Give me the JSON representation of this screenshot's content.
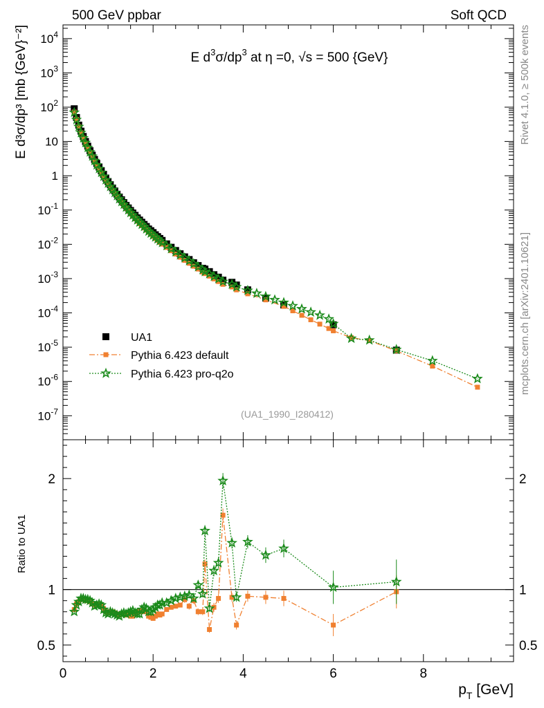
{
  "header": {
    "left": "500 GeV ppbar",
    "right": "Soft QCD"
  },
  "side": {
    "top": "Rivet 4.1.0, ≥ 500k events",
    "bottom": "mcplots.cern.ch [arXiv:2401.10621]"
  },
  "chart_data": {
    "type": "scatter",
    "title": "E  d³σ/dp³ at η =0, √s = 500 {GeV}",
    "title_parts": {
      "p1": "E   d",
      "sup": "3",
      "p2": "σ/dp",
      "p3": " at η =0, √s = 500 {GeV}"
    },
    "analysis_tag": "(UA1_1990_I280412)",
    "xlabel": {
      "main": "p",
      "sub": "T",
      "unit": " [GeV]"
    },
    "ylabel": {
      "text": "E d³σ/dp³ [mb {GeV}⁻²]"
    },
    "ratio_ylabel": "Ratio to UA1",
    "xlim": [
      0,
      10
    ],
    "ylim_log": [
      -7.7,
      4.4
    ],
    "ratio_ylim": [
      0.35,
      2.35
    ],
    "x_ticks": [
      "0",
      "2",
      "4",
      "6",
      "8"
    ],
    "y_ticks": [
      {
        "exp": -7,
        "label": "10",
        "sup": "-7"
      },
      {
        "exp": -6,
        "label": "10",
        "sup": "-6"
      },
      {
        "exp": -5,
        "label": "10",
        "sup": "-5"
      },
      {
        "exp": -4,
        "label": "10",
        "sup": "-4"
      },
      {
        "exp": -3,
        "label": "10",
        "sup": "-3"
      },
      {
        "exp": -2,
        "label": "10",
        "sup": "-2"
      },
      {
        "exp": -1,
        "label": "10",
        "sup": "-1"
      },
      {
        "exp": 0,
        "label": "1",
        "sup": ""
      },
      {
        "exp": 1,
        "label": "10",
        "sup": ""
      },
      {
        "exp": 2,
        "label": "10",
        "sup": "2"
      },
      {
        "exp": 3,
        "label": "10",
        "sup": "3"
      },
      {
        "exp": 4,
        "label": "10",
        "sup": "4"
      }
    ],
    "ratio_ticks": [
      {
        "value": 0.5,
        "label": "0.5"
      },
      {
        "value": 1,
        "label": "1"
      },
      {
        "value": 2,
        "label": "2"
      }
    ],
    "legend": [
      {
        "name": "UA1",
        "color": "#000000"
      },
      {
        "name": "Pythia 6.423 default",
        "color": "#f08030"
      },
      {
        "name": "Pythia 6.423 pro-q2o",
        "color": "#1a8a1a"
      }
    ],
    "x": [
      0.25,
      0.3,
      0.35,
      0.4,
      0.45,
      0.5,
      0.55,
      0.6,
      0.65,
      0.7,
      0.75,
      0.8,
      0.85,
      0.9,
      0.95,
      1.0,
      1.05,
      1.1,
      1.15,
      1.2,
      1.25,
      1.3,
      1.35,
      1.4,
      1.45,
      1.5,
      1.55,
      1.6,
      1.65,
      1.7,
      1.75,
      1.8,
      1.85,
      1.9,
      1.95,
      2.0,
      2.05,
      2.1,
      2.15,
      2.2,
      2.3,
      2.4,
      2.5,
      2.6,
      2.7,
      2.8,
      2.9,
      3.0,
      3.1,
      3.15,
      3.25,
      3.35,
      3.45,
      3.55,
      3.75,
      3.85,
      4.1,
      4.5,
      4.9,
      6.0,
      7.4
    ],
    "series": [
      {
        "name": "UA1",
        "values": [
          90,
          50,
          30,
          20,
          14,
          10,
          7.3,
          5.4,
          4.0,
          3.0,
          2.3,
          1.8,
          1.4,
          1.1,
          0.86,
          0.68,
          0.55,
          0.44,
          0.36,
          0.29,
          0.24,
          0.2,
          0.165,
          0.137,
          0.115,
          0.097,
          0.082,
          0.07,
          0.059,
          0.051,
          0.044,
          0.038,
          0.033,
          0.028,
          0.025,
          0.022,
          0.019,
          0.0168,
          0.0148,
          0.013,
          0.0103,
          0.0082,
          0.0066,
          0.0053,
          0.0043,
          0.0036,
          0.0029,
          0.0024,
          0.002,
          0.0019,
          0.0016,
          0.0013,
          0.0011,
          0.0009,
          0.00078,
          0.00065,
          0.00047,
          0.00027,
          0.00017,
          4.5e-05,
          8.2e-06
        ]
      },
      {
        "name": "Pythia 6.423 default",
        "x": [
          0.25,
          0.3,
          0.35,
          0.4,
          0.45,
          0.5,
          0.55,
          0.6,
          0.65,
          0.7,
          0.75,
          0.8,
          0.85,
          0.9,
          0.95,
          1.0,
          1.05,
          1.1,
          1.15,
          1.2,
          1.25,
          1.3,
          1.35,
          1.4,
          1.45,
          1.5,
          1.55,
          1.6,
          1.65,
          1.7,
          1.75,
          1.8,
          1.85,
          1.9,
          1.95,
          2.0,
          2.05,
          2.1,
          2.15,
          2.2,
          2.3,
          2.4,
          2.5,
          2.6,
          2.7,
          2.8,
          2.9,
          3.0,
          3.1,
          3.15,
          3.25,
          3.35,
          3.45,
          3.55,
          3.75,
          3.85,
          4.1,
          4.5,
          4.9,
          5.1,
          5.3,
          5.5,
          5.7,
          5.9,
          6.0,
          6.4,
          6.8,
          7.4,
          8.2,
          9.2
        ],
        "values": [
          72,
          44,
          27,
          18,
          12.5,
          9,
          6.5,
          4.8,
          3.6,
          2.7,
          2.0,
          1.55,
          1.2,
          0.92,
          0.72,
          0.58,
          0.46,
          0.37,
          0.3,
          0.245,
          0.2,
          0.163,
          0.135,
          0.112,
          0.093,
          0.078,
          0.066,
          0.056,
          0.047,
          0.04,
          0.035,
          0.03,
          0.026,
          0.0225,
          0.0195,
          0.017,
          0.0148,
          0.013,
          0.0114,
          0.0101,
          0.0081,
          0.0065,
          0.0052,
          0.0042,
          0.0034,
          0.0028,
          0.0023,
          0.0019,
          0.00155,
          0.0014,
          0.00118,
          0.00098,
          0.00082,
          0.00068,
          0.00057,
          0.00047,
          0.00036,
          0.00024,
          0.000155,
          0.000115,
          8.5e-05,
          6.3e-05,
          4.7e-05,
          3.5e-05,
          3e-05,
          1.9e-05,
          1.55e-05,
          7.8e-06,
          2.8e-06,
          6.8e-07
        ],
        "ratio_x": [
          0.25,
          0.3,
          0.35,
          0.4,
          0.45,
          0.5,
          0.55,
          0.6,
          0.65,
          0.7,
          0.75,
          0.8,
          0.85,
          0.9,
          0.95,
          1.0,
          1.05,
          1.1,
          1.15,
          1.2,
          1.25,
          1.3,
          1.35,
          1.4,
          1.45,
          1.5,
          1.55,
          1.6,
          1.65,
          1.7,
          1.75,
          1.8,
          1.85,
          1.9,
          1.95,
          2.0,
          2.05,
          2.1,
          2.15,
          2.2,
          2.3,
          2.4,
          2.5,
          2.6,
          2.7,
          2.8,
          2.9,
          3.0,
          3.1,
          3.15,
          3.25,
          3.35,
          3.45,
          3.55,
          3.75,
          3.85,
          4.1,
          4.5,
          4.9,
          6.0,
          7.4
        ],
        "ratio": [
          0.82,
          0.87,
          0.89,
          0.91,
          0.91,
          0.9,
          0.9,
          0.89,
          0.87,
          0.86,
          0.86,
          0.87,
          0.86,
          0.83,
          0.8,
          0.79,
          0.8,
          0.8,
          0.79,
          0.78,
          0.77,
          0.78,
          0.78,
          0.77,
          0.78,
          0.76,
          0.76,
          0.79,
          0.8,
          0.81,
          0.8,
          0.81,
          0.8,
          0.76,
          0.75,
          0.74,
          0.76,
          0.78,
          0.77,
          0.78,
          0.82,
          0.84,
          0.85,
          0.86,
          0.91,
          0.85,
          0.9,
          0.8,
          0.8,
          1.23,
          0.64,
          0.84,
          0.92,
          1.67,
          0.93,
          0.68,
          0.94,
          0.93,
          0.92,
          0.68,
          0.98
        ],
        "ratio_err": [
          0.02,
          0.02,
          0.02,
          0.02,
          0.02,
          0.02,
          0.02,
          0.02,
          0.02,
          0.02,
          0.02,
          0.02,
          0.02,
          0.02,
          0.02,
          0.02,
          0.02,
          0.02,
          0.02,
          0.02,
          0.02,
          0.02,
          0.02,
          0.02,
          0.02,
          0.02,
          0.02,
          0.02,
          0.02,
          0.02,
          0.02,
          0.02,
          0.02,
          0.02,
          0.02,
          0.02,
          0.02,
          0.02,
          0.02,
          0.02,
          0.02,
          0.02,
          0.02,
          0.02,
          0.03,
          0.03,
          0.03,
          0.03,
          0.03,
          0.04,
          0.03,
          0.04,
          0.04,
          0.06,
          0.04,
          0.04,
          0.05,
          0.06,
          0.07,
          0.1,
          0.15
        ]
      },
      {
        "name": "Pythia 6.423 pro-q2o",
        "x": [
          0.25,
          0.3,
          0.35,
          0.4,
          0.45,
          0.5,
          0.55,
          0.6,
          0.65,
          0.7,
          0.75,
          0.8,
          0.85,
          0.9,
          0.95,
          1.0,
          1.05,
          1.1,
          1.15,
          1.2,
          1.25,
          1.3,
          1.35,
          1.4,
          1.45,
          1.5,
          1.55,
          1.6,
          1.65,
          1.7,
          1.75,
          1.8,
          1.85,
          1.9,
          1.95,
          2.0,
          2.05,
          2.1,
          2.15,
          2.2,
          2.3,
          2.4,
          2.5,
          2.6,
          2.7,
          2.8,
          2.9,
          3.0,
          3.1,
          3.15,
          3.25,
          3.35,
          3.45,
          3.55,
          3.75,
          3.85,
          4.1,
          4.3,
          4.5,
          4.7,
          4.9,
          5.1,
          5.3,
          5.5,
          5.7,
          5.9,
          6.0,
          6.4,
          6.8,
          7.4,
          8.2,
          9.2
        ],
        "values": [
          70,
          43,
          27,
          18,
          12.6,
          9.2,
          6.6,
          4.9,
          3.7,
          2.75,
          2.05,
          1.6,
          1.24,
          0.95,
          0.75,
          0.6,
          0.48,
          0.39,
          0.32,
          0.26,
          0.21,
          0.175,
          0.145,
          0.12,
          0.1,
          0.084,
          0.071,
          0.06,
          0.051,
          0.044,
          0.038,
          0.033,
          0.028,
          0.024,
          0.021,
          0.0185,
          0.0162,
          0.0143,
          0.0126,
          0.0112,
          0.0091,
          0.0074,
          0.006,
          0.0049,
          0.004,
          0.0033,
          0.0027,
          0.0022,
          0.0018,
          0.0016,
          0.00138,
          0.00116,
          0.00098,
          0.00082,
          0.00068,
          0.00057,
          0.00045,
          0.00037,
          0.0003,
          0.00024,
          0.0002,
          0.00016,
          0.00013,
          0.000105,
          8.5e-05,
          6.6e-05,
          4.8e-05,
          1.8e-05,
          1.6e-05,
          8.5e-06,
          4e-06,
          1.2e-06
        ],
        "ratio_x": [
          0.25,
          0.3,
          0.35,
          0.4,
          0.45,
          0.5,
          0.55,
          0.6,
          0.65,
          0.7,
          0.75,
          0.8,
          0.85,
          0.9,
          0.95,
          1.0,
          1.05,
          1.1,
          1.15,
          1.2,
          1.25,
          1.3,
          1.35,
          1.4,
          1.45,
          1.5,
          1.55,
          1.6,
          1.65,
          1.7,
          1.75,
          1.8,
          1.85,
          1.9,
          1.95,
          2.0,
          2.05,
          2.1,
          2.15,
          2.2,
          2.3,
          2.4,
          2.5,
          2.6,
          2.7,
          2.8,
          2.9,
          3.0,
          3.1,
          3.15,
          3.25,
          3.35,
          3.45,
          3.55,
          3.75,
          3.85,
          4.1,
          4.5,
          4.9,
          6.0,
          7.4
        ],
        "ratio": [
          0.8,
          0.86,
          0.89,
          0.92,
          0.92,
          0.91,
          0.91,
          0.9,
          0.88,
          0.85,
          0.86,
          0.87,
          0.86,
          0.82,
          0.79,
          0.78,
          0.8,
          0.79,
          0.78,
          0.77,
          0.76,
          0.78,
          0.79,
          0.78,
          0.79,
          0.8,
          0.81,
          0.79,
          0.78,
          0.78,
          0.82,
          0.84,
          0.83,
          0.8,
          0.8,
          0.82,
          0.84,
          0.86,
          0.86,
          0.88,
          0.88,
          0.9,
          0.92,
          0.93,
          0.94,
          0.95,
          0.92,
          1.04,
          0.96,
          1.53,
          0.83,
          1.17,
          1.24,
          1.98,
          1.42,
          0.93,
          1.43,
          1.31,
          1.37,
          1.02,
          1.07
        ],
        "ratio_err": [
          0.02,
          0.02,
          0.02,
          0.02,
          0.02,
          0.02,
          0.02,
          0.02,
          0.02,
          0.02,
          0.02,
          0.02,
          0.02,
          0.02,
          0.02,
          0.02,
          0.02,
          0.02,
          0.02,
          0.02,
          0.02,
          0.02,
          0.02,
          0.02,
          0.02,
          0.02,
          0.02,
          0.02,
          0.02,
          0.02,
          0.02,
          0.02,
          0.02,
          0.02,
          0.02,
          0.02,
          0.02,
          0.02,
          0.02,
          0.02,
          0.02,
          0.02,
          0.02,
          0.02,
          0.03,
          0.03,
          0.03,
          0.03,
          0.03,
          0.05,
          0.03,
          0.05,
          0.05,
          0.07,
          0.05,
          0.04,
          0.06,
          0.07,
          0.08,
          0.15,
          0.2
        ]
      }
    ]
  }
}
